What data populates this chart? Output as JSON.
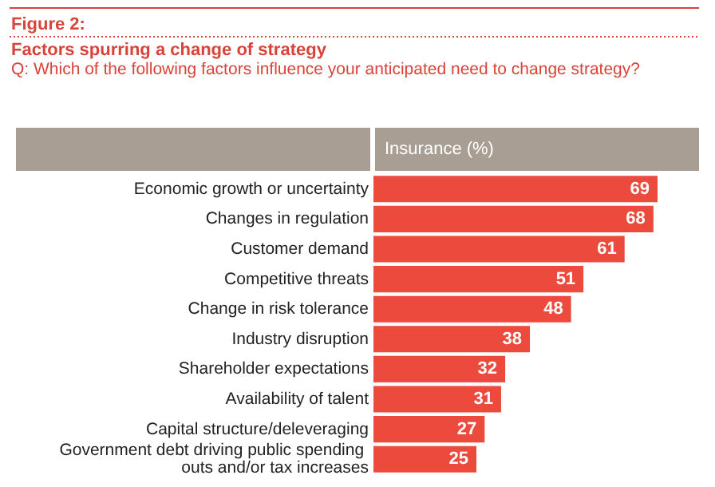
{
  "chart_data": {
    "type": "bar",
    "orientation": "horizontal",
    "title": "Figure 2:",
    "subtitle": "Factors spurring a change of strategy",
    "annotations": [
      "Q: Which of the following factors influence your anticipated need to change strategy?"
    ],
    "xlabel": "Insurance (%)",
    "categories": [
      "Economic growth or uncertainty",
      "Changes in regulation",
      "Customer demand",
      "Competitive threats",
      "Change in risk tolerance",
      "Industry disruption",
      "Shareholder expectations",
      "Availability of talent",
      "Capital structure/deleveraging",
      "Government debt driving public spending outs and/or tax increases"
    ],
    "values": [
      69,
      68,
      61,
      51,
      48,
      38,
      32,
      31,
      27,
      25
    ],
    "color": "#eb4a3c",
    "data_labels": true,
    "tick_labels": "y"
  }
}
